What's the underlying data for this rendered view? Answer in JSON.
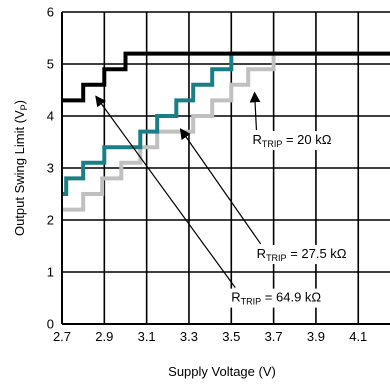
{
  "chart_data": {
    "type": "line",
    "xlabel": "Supply Voltage (V)",
    "ylabel": "Output Swing Limit (V",
    "ylabel_sub": "P",
    "ylabel_close": ")",
    "xlim": [
      2.7,
      4.25
    ],
    "ylim": [
      0,
      6
    ],
    "x_ticks": [
      "2.7",
      "2.9",
      "3.1",
      "3.3",
      "3.5",
      "3.7",
      "3.9",
      "4.1"
    ],
    "y_ticks": [
      "0",
      "1",
      "2",
      "3",
      "4",
      "5",
      "6"
    ],
    "grid": true,
    "series": [
      {
        "name": "RTRIP = 20 kΩ",
        "color": "#000000",
        "points": [
          [
            2.7,
            4.3
          ],
          [
            2.8,
            4.3
          ],
          [
            2.8,
            4.6
          ],
          [
            2.9,
            4.6
          ],
          [
            2.9,
            4.9
          ],
          [
            3.0,
            4.9
          ],
          [
            3.0,
            5.2
          ],
          [
            4.25,
            5.2
          ]
        ]
      },
      {
        "name": "RTRIP = 27.5 kΩ",
        "color": "#1a7f85",
        "points": [
          [
            2.7,
            2.5
          ],
          [
            2.72,
            2.5
          ],
          [
            2.72,
            2.8
          ],
          [
            2.8,
            2.8
          ],
          [
            2.8,
            3.1
          ],
          [
            2.9,
            3.1
          ],
          [
            2.9,
            3.4
          ],
          [
            3.07,
            3.4
          ],
          [
            3.07,
            3.7
          ],
          [
            3.15,
            3.7
          ],
          [
            3.15,
            4.0
          ],
          [
            3.24,
            4.0
          ],
          [
            3.24,
            4.3
          ],
          [
            3.32,
            4.3
          ],
          [
            3.32,
            4.6
          ],
          [
            3.41,
            4.6
          ],
          [
            3.41,
            4.9
          ],
          [
            3.5,
            4.9
          ],
          [
            3.5,
            5.2
          ],
          [
            3.7,
            5.2
          ]
        ]
      },
      {
        "name": "RTRIP = 64.9 kΩ",
        "color": "#c0c0c0",
        "points": [
          [
            2.7,
            2.2
          ],
          [
            2.8,
            2.2
          ],
          [
            2.8,
            2.5
          ],
          [
            2.89,
            2.5
          ],
          [
            2.89,
            2.8
          ],
          [
            2.98,
            2.8
          ],
          [
            2.98,
            3.1
          ],
          [
            3.07,
            3.1
          ],
          [
            3.07,
            3.4
          ],
          [
            3.15,
            3.4
          ],
          [
            3.15,
            3.7
          ],
          [
            3.32,
            3.7
          ],
          [
            3.32,
            4.0
          ],
          [
            3.41,
            4.0
          ],
          [
            3.41,
            4.3
          ],
          [
            3.5,
            4.3
          ],
          [
            3.5,
            4.6
          ],
          [
            3.58,
            4.6
          ],
          [
            3.58,
            4.9
          ],
          [
            3.7,
            4.9
          ],
          [
            3.7,
            5.2
          ],
          [
            4.25,
            5.2
          ]
        ]
      }
    ],
    "annotations": [
      {
        "main": "R",
        "sub": "TRIP",
        "rest": " = 20 kΩ",
        "label_at": [
          3.6,
          3.46
        ],
        "arrow_to": [
          3.61,
          4.45
        ]
      },
      {
        "main": "R",
        "sub": "TRIP",
        "rest": " = 27.5 kΩ",
        "label_at": [
          3.62,
          1.27
        ],
        "arrow_to": [
          3.26,
          3.75
        ]
      },
      {
        "main": "R",
        "sub": "TRIP",
        "rest": " = 64.9 kΩ",
        "label_at": [
          3.5,
          0.43
        ],
        "arrow_to": [
          2.86,
          4.38
        ]
      }
    ]
  }
}
